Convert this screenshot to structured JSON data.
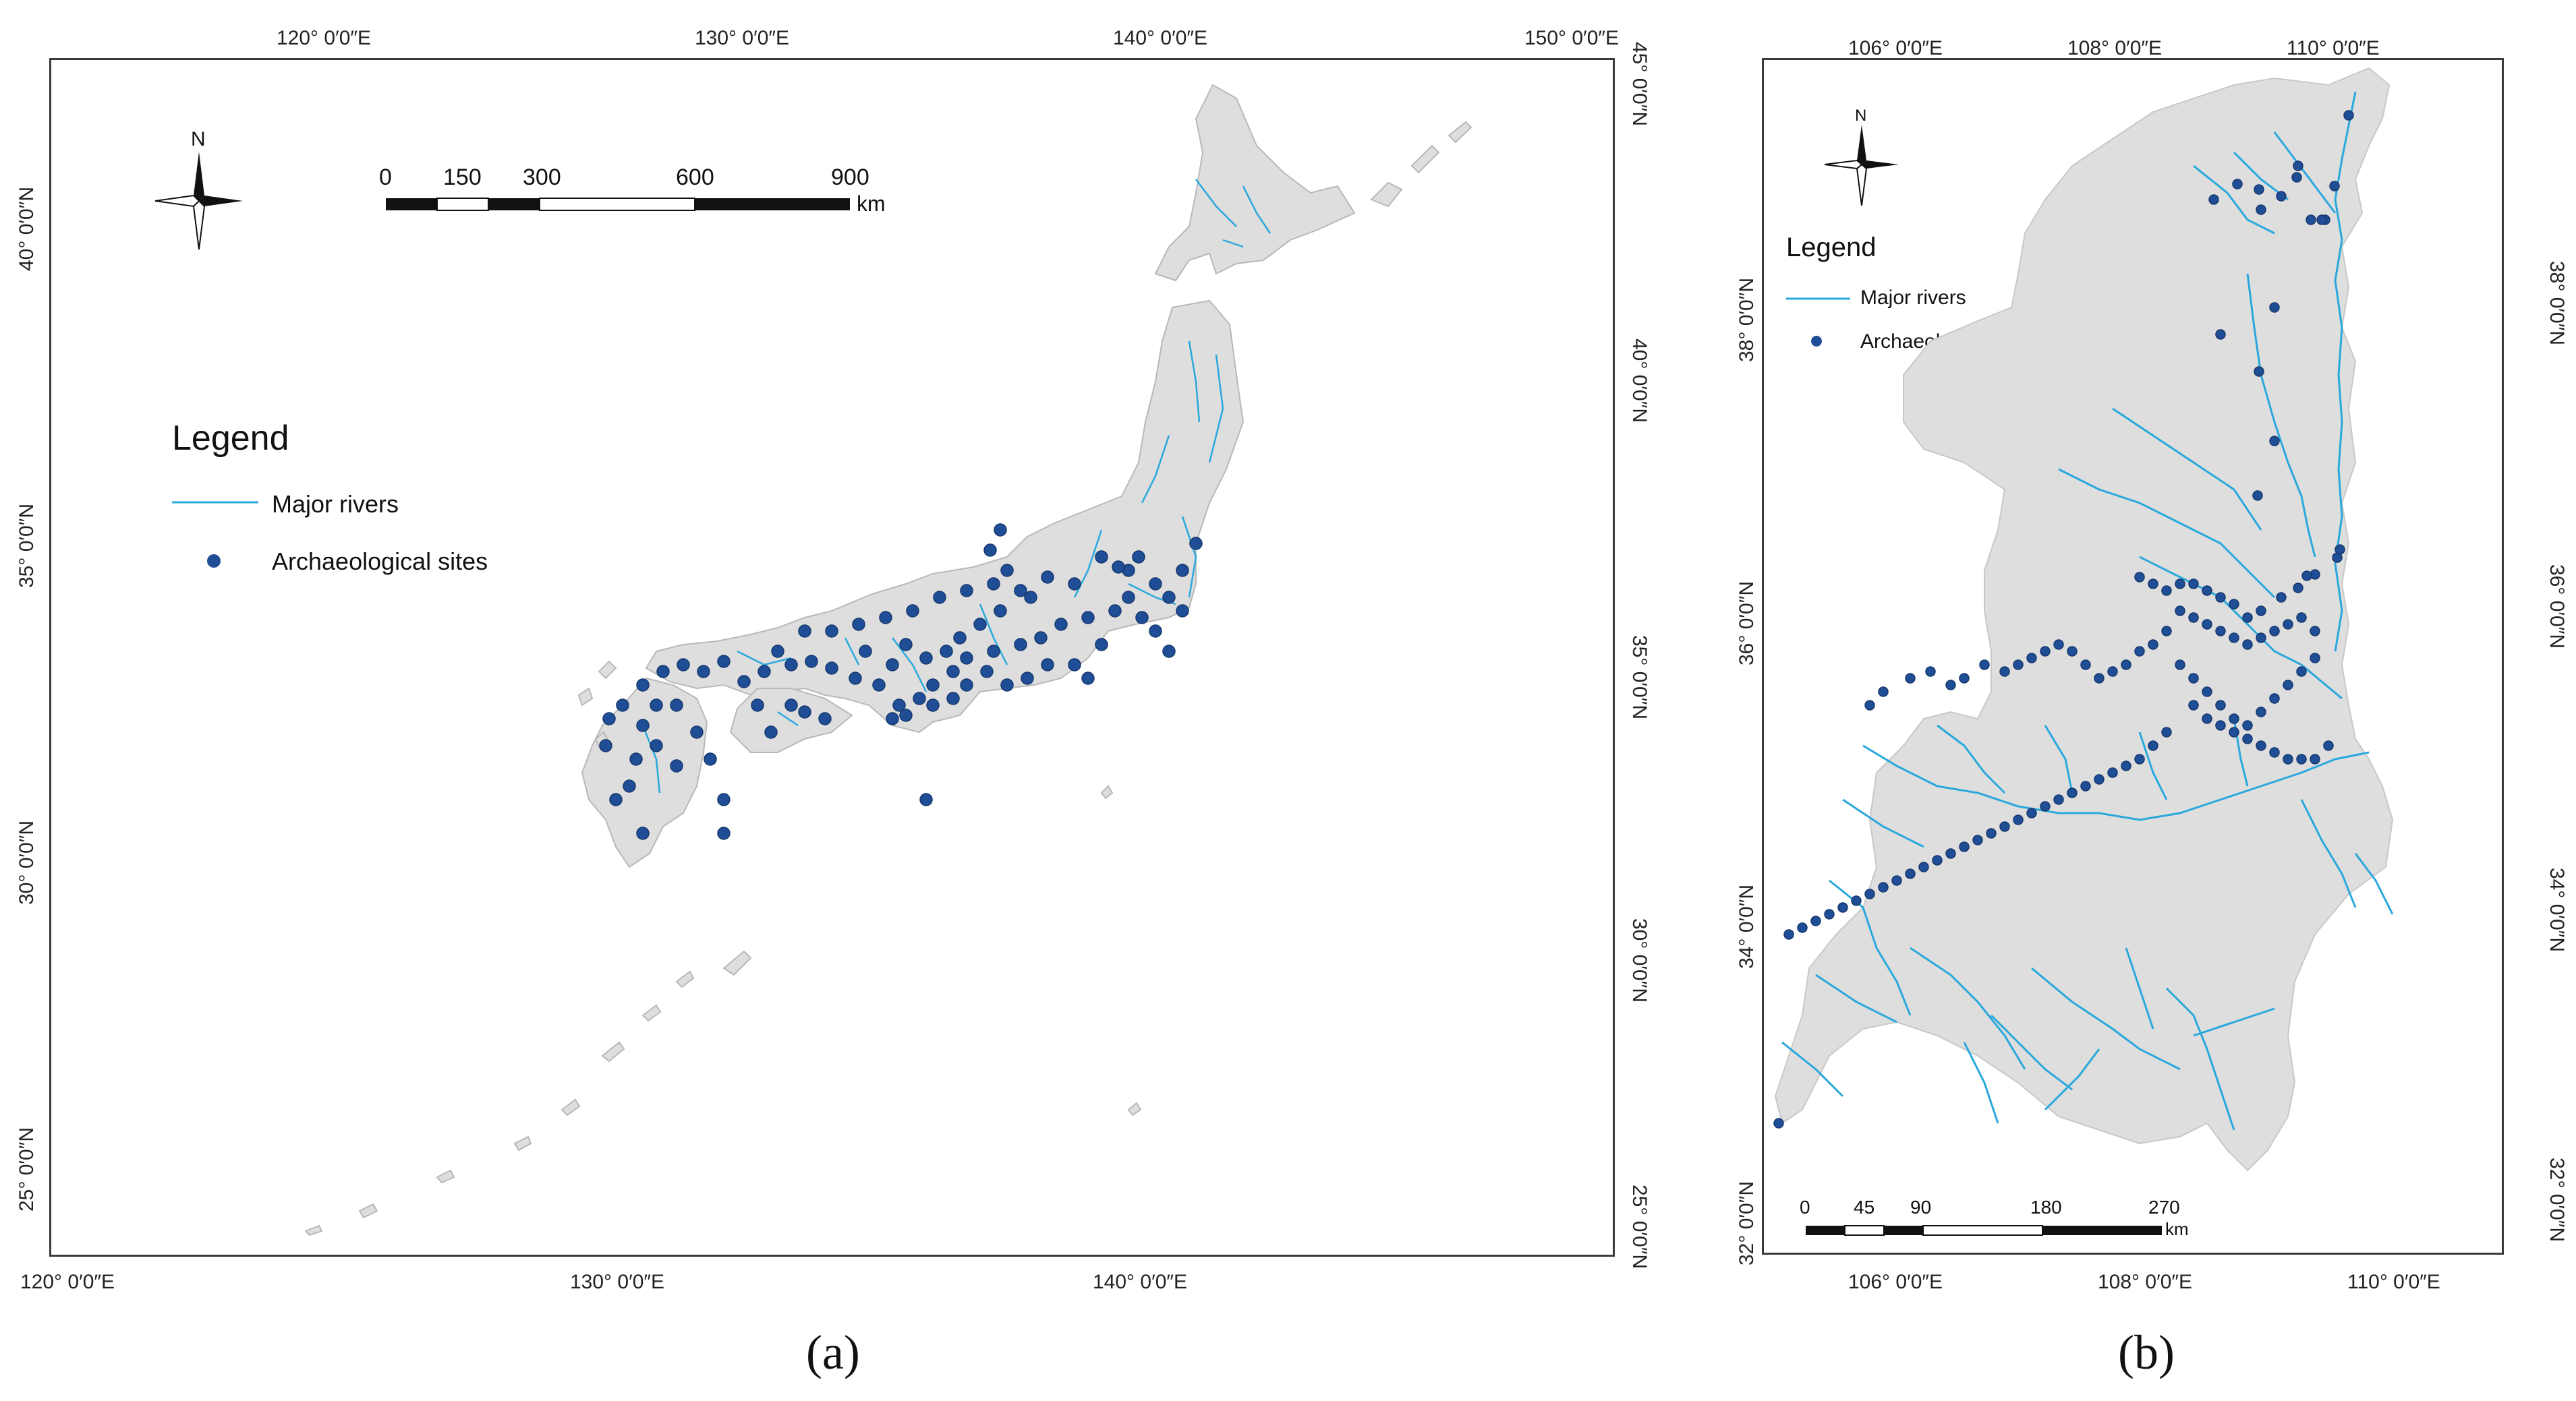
{
  "panel_a": {
    "top_ticks": [
      "120° 0′0″E",
      "130° 0′0″E",
      "140° 0′0″E",
      "150° 0′0″E"
    ],
    "bottom_ticks": [
      "120° 0′0″E",
      "130° 0′0″E",
      "140° 0′0″E"
    ],
    "left_ticks": [
      "40° 0′0″N",
      "35° 0′0″N",
      "30° 0′0″N",
      "25° 0′0″N"
    ],
    "right_ticks": [
      "45° 0′0″N",
      "40° 0′0″N",
      "35° 0′0″N",
      "30° 0′0″N",
      "25° 0′0″N"
    ],
    "north_label": "N",
    "legend": {
      "title": "Legend",
      "rivers": "Major rivers",
      "sites": "Archaeological sites"
    },
    "scale": {
      "labels": [
        "0",
        "150",
        "300",
        "600",
        "900"
      ],
      "unit": "km"
    },
    "caption": "(a)"
  },
  "panel_b": {
    "top_ticks": [
      "106° 0′0″E",
      "108° 0′0″E",
      "110° 0′0″E"
    ],
    "bottom_ticks": [
      "106° 0′0″E",
      "108° 0′0″E",
      "110° 0′0″E"
    ],
    "left_ticks": [
      "38° 0′0″N",
      "36° 0′0″N",
      "34° 0′0″N",
      "32° 0′0″N"
    ],
    "right_ticks": [
      "38° 0′0″N",
      "36° 0′0″N",
      "34° 0′0″N",
      "32° 0′0″N"
    ],
    "north_label": "N",
    "legend": {
      "title": "Legend",
      "rivers": "Major rivers",
      "sites": "Archaeological sites"
    },
    "scale": {
      "labels": [
        "0",
        "45",
        "90",
        "180",
        "270"
      ],
      "unit": "km"
    },
    "caption": "(b)"
  },
  "colors": {
    "land": "#dedede",
    "river": "#29a8dc",
    "site": "#1f4e96",
    "border": "#3a3a3a"
  }
}
